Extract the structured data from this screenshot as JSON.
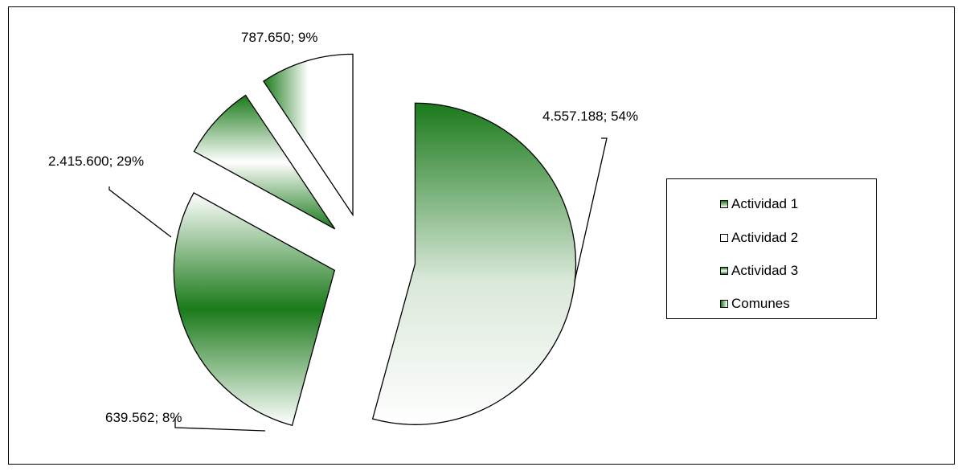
{
  "chart_data": {
    "type": "pie",
    "exploded": true,
    "categories": [
      "Actividad 1",
      "Actividad 2",
      "Actividad 3",
      "Comunes"
    ],
    "values": [
      4557188,
      2415600,
      639562,
      787650
    ],
    "percentages": [
      54,
      29,
      8,
      9
    ],
    "data_labels": [
      "4.557.188; 54%",
      "2.415.600; 29%",
      "639.562; 8%",
      "787.650; 9%"
    ],
    "legend_placement": "right",
    "legend": [
      "Actividad 1",
      "Actividad 2",
      "Actividad 3",
      "Comunes"
    ],
    "colors": {
      "green": "#1a7a1a",
      "white": "#ffffff",
      "outline": "#000000"
    }
  }
}
